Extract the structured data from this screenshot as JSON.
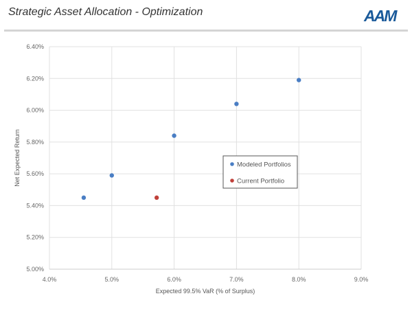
{
  "header": {
    "title": "Strategic Asset Allocation - Optimization",
    "logo": "AAM"
  },
  "chart_data": {
    "type": "scatter",
    "xlabel": "Expected 99.5% VaR (% of Surplus)",
    "ylabel": "Net Expected Return",
    "xlim": [
      4.0,
      9.0
    ],
    "ylim": [
      5.0,
      6.4
    ],
    "xticks": [
      "4.0%",
      "5.0%",
      "6.0%",
      "7.0%",
      "8.0%",
      "9.0%"
    ],
    "yticks": [
      "5.00%",
      "5.20%",
      "5.40%",
      "5.60%",
      "5.80%",
      "6.00%",
      "6.20%",
      "6.40%"
    ],
    "grid": true,
    "legend_placement": "center-right",
    "series": [
      {
        "name": "Modeled Portfolios",
        "color": "#4a7ec4",
        "points": [
          [
            4.55,
            5.45
          ],
          [
            5.0,
            5.59
          ],
          [
            6.0,
            5.84
          ],
          [
            7.0,
            6.04
          ],
          [
            8.0,
            6.19
          ]
        ]
      },
      {
        "name": "Current Portfolio",
        "color": "#c0403a",
        "points": [
          [
            5.72,
            5.45
          ]
        ]
      }
    ]
  }
}
